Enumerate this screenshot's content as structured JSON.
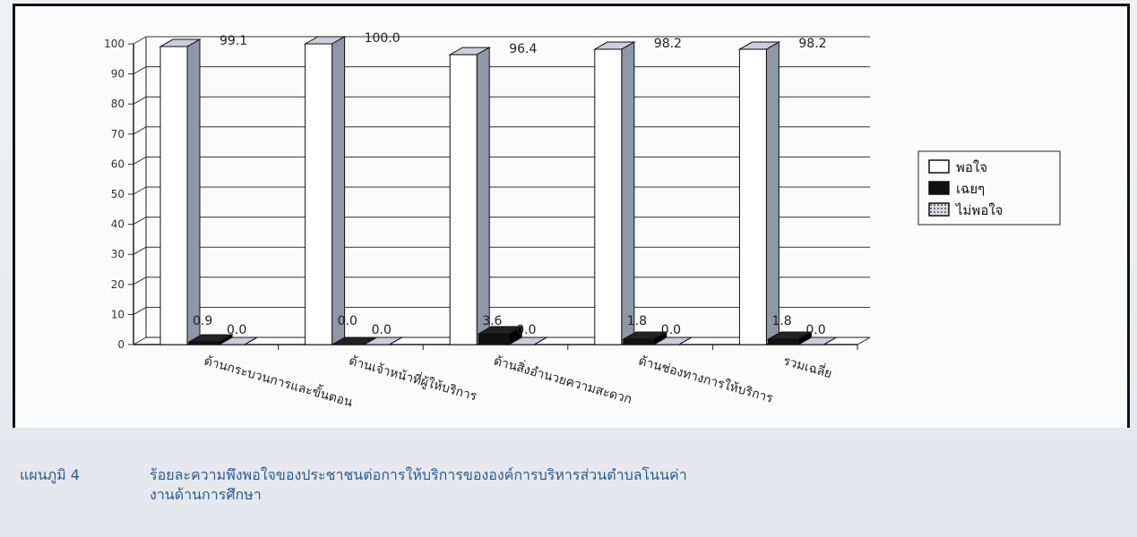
{
  "caption": {
    "figure_number": "แผนภูมิ 4",
    "line1": "ร้อยละความพึงพอใจของประชาชนต่อการให้บริการขององค์การบริหารส่วนตำบลโนนค่า",
    "line2": "งานด้านการศึกษา"
  },
  "colors": {
    "satisfied": "#ffffff",
    "neutral": "#111111",
    "unsatisfied": "#b9bec8",
    "side_face": "#8f96a6",
    "top_face": "#c9ceda",
    "text": "#2b5c8f"
  },
  "chart_data": {
    "type": "bar",
    "title": "",
    "xlabel": "",
    "ylabel": "",
    "ylim": [
      0,
      100
    ],
    "yticks": [
      0,
      10,
      20,
      30,
      40,
      50,
      60,
      70,
      80,
      90,
      100
    ],
    "grid": true,
    "legend_position": "right",
    "categories": [
      "ด้านกระบวนการและขั้นตอน",
      "ด้านเจ้าหน้าที่ผู้ให้บริการ",
      "ด้านสิ่งอำนวยความสะดวก",
      "ด้านช่องทางการให้บริการ",
      "รวมเฉลี่ย"
    ],
    "series": [
      {
        "name": "พอใจ",
        "values": [
          99.1,
          100.0,
          96.4,
          98.2,
          98.2
        ],
        "labels": [
          "99.1",
          "100.0",
          "96.4",
          "98.2",
          "98.2"
        ]
      },
      {
        "name": "เฉยๆ",
        "values": [
          0.9,
          0.0,
          3.6,
          1.8,
          1.8
        ],
        "labels": [
          "0.9",
          "0.0",
          "3.6",
          "1.8",
          "1.8"
        ]
      },
      {
        "name": "ไม่พอใจ",
        "values": [
          0.0,
          0.0,
          0.0,
          0.0,
          0.0
        ],
        "labels": [
          "0.0",
          "0.0",
          "0.0",
          "0.0",
          "0.0"
        ]
      }
    ]
  }
}
